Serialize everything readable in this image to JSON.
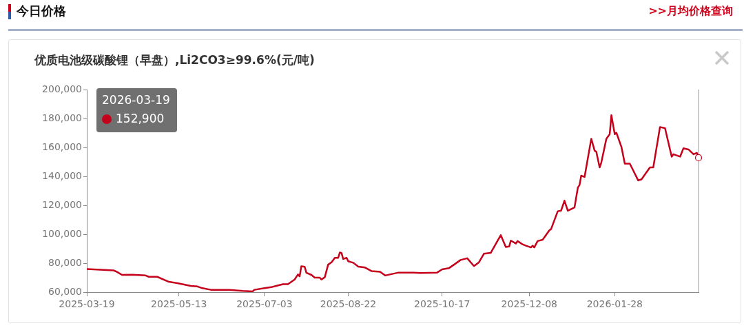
{
  "chart_data": {
    "type": "line",
    "title": "优质电池级碳酸锂（早盘）,Li2CO3≥99.6%(元/吨)",
    "annotations": [
      "今日价格",
      ">>月均价格查询",
      "2026-03-19",
      "152,900"
    ],
    "x": [
      "2025-03-19",
      "2025-04-04",
      "2025-04-06",
      "2025-04-09",
      "2025-04-15",
      "2025-04-23",
      "2025-04-25",
      "2025-04-30",
      "2025-05-07",
      "2025-05-12",
      "2025-05-20",
      "2025-05-24",
      "2025-05-27",
      "2025-06-01",
      "2025-06-12",
      "2025-06-20",
      "2025-06-26",
      "2025-06-27",
      "2025-07-03",
      "2025-07-07",
      "2025-07-10",
      "2025-07-14",
      "2025-07-17",
      "2025-07-21",
      "2025-07-23",
      "2025-07-24",
      "2025-07-25",
      "2025-07-27",
      "2025-07-28",
      "2025-07-31",
      "2025-08-02",
      "2025-08-05",
      "2025-08-06",
      "2025-08-08",
      "2025-08-10",
      "2025-08-12",
      "2025-08-14",
      "2025-08-16",
      "2025-08-17",
      "2025-08-18",
      "2025-08-19",
      "2025-08-21",
      "2025-08-22",
      "2025-08-25",
      "2025-08-28",
      "2025-09-01",
      "2025-09-05",
      "2025-09-10",
      "2025-09-13",
      "2025-09-21",
      "2025-09-30",
      "2025-10-04",
      "2025-10-14",
      "2025-10-17",
      "2025-10-21",
      "2025-10-25",
      "2025-10-28",
      "2025-11-01",
      "2025-11-05",
      "2025-11-08",
      "2025-11-11",
      "2025-11-15",
      "2025-11-19",
      "2025-11-21",
      "2025-11-24",
      "2025-11-26",
      "2025-11-27",
      "2025-11-30",
      "2025-12-01",
      "2025-12-04",
      "2025-12-06",
      "2025-12-09",
      "2025-12-10",
      "2025-12-11",
      "2025-12-13",
      "2025-12-16",
      "2025-12-20",
      "2025-12-21",
      "2025-12-25",
      "2025-12-27",
      "2025-12-29",
      "2025-12-31",
      "2026-01-04",
      "2026-01-06",
      "2026-01-07",
      "2026-01-08",
      "2026-01-10",
      "2026-01-14",
      "2026-01-16",
      "2026-01-17",
      "2026-01-19",
      "2026-01-20",
      "2026-01-23",
      "2026-01-25",
      "2026-01-26",
      "2026-01-28",
      "2026-01-29",
      "2026-02-01",
      "2026-02-03",
      "2026-02-06",
      "2026-02-11",
      "2026-02-13",
      "2026-02-18",
      "2026-02-20",
      "2026-02-24",
      "2026-02-27",
      "2026-03-03",
      "2026-03-04",
      "2026-03-08",
      "2026-03-10",
      "2026-03-13",
      "2026-03-16",
      "2026-03-18",
      "2026-03-19"
    ],
    "series": [
      {
        "color": "#c4001a",
        "values": [
          76000,
          75000,
          74000,
          71900,
          72000,
          71500,
          70600,
          70600,
          67100,
          66200,
          64300,
          63900,
          62700,
          61600,
          61600,
          60800,
          60500,
          61600,
          62700,
          63400,
          64300,
          65500,
          65500,
          68700,
          72200,
          70900,
          77900,
          77500,
          73400,
          71900,
          70000,
          70000,
          68700,
          70300,
          79000,
          80600,
          83700,
          83700,
          87400,
          87000,
          82900,
          83700,
          81300,
          80300,
          77600,
          77000,
          74500,
          74000,
          71500,
          73500,
          73500,
          73200,
          73500,
          75700,
          76500,
          79700,
          82200,
          83400,
          78000,
          80600,
          86600,
          87100,
          95300,
          99400,
          91200,
          91500,
          95600,
          93600,
          95300,
          93000,
          92100,
          90900,
          92100,
          90900,
          95300,
          96200,
          102700,
          103500,
          115900,
          116300,
          123200,
          116300,
          118500,
          132300,
          134000,
          140500,
          139600,
          166000,
          157800,
          157000,
          146200,
          149600,
          166000,
          169200,
          182300,
          169200,
          170100,
          160300,
          148800,
          148800,
          137200,
          138000,
          146200,
          146200,
          174100,
          173300,
          153600,
          155300,
          153600,
          159400,
          158600,
          155300,
          156200,
          152900
        ]
      }
    ],
    "xlim": [
      "2025-03-19",
      "2026-03-19"
    ],
    "xticks": [
      "2025-03-19",
      "2025-05-13",
      "2025-07-03",
      "2025-08-22",
      "2025-10-17",
      "2025-12-08",
      "2026-01-28"
    ],
    "ylim": [
      60000,
      200000
    ],
    "yticks": [
      {
        "value": 60000,
        "label": "60,000"
      },
      {
        "value": 80000,
        "label": "80,000"
      },
      {
        "value": 100000,
        "label": "100,000"
      },
      {
        "value": 120000,
        "label": "120,000"
      },
      {
        "value": 140000,
        "label": "140,000"
      },
      {
        "value": 160000,
        "label": "160,000"
      },
      {
        "value": 180000,
        "label": "180,000"
      },
      {
        "value": 200000,
        "label": "200,000"
      }
    ],
    "grid": false,
    "legend": false,
    "marker": "none",
    "line_style": "solid"
  }
}
